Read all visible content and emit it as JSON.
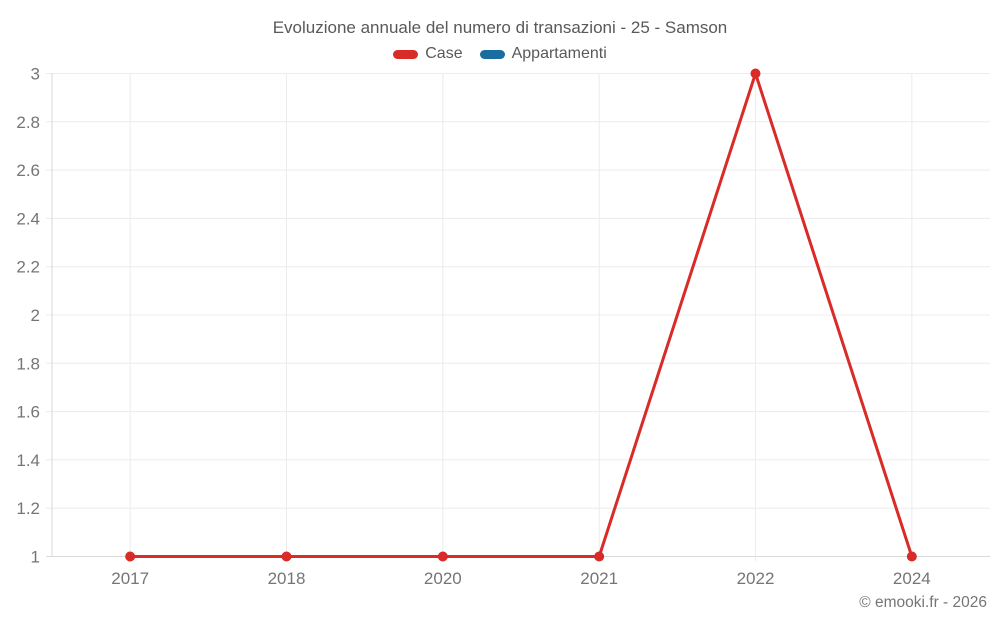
{
  "title": "Evoluzione annuale del numero di transazioni - 25 - Samson",
  "legend": [
    {
      "label": "Case",
      "color": "#d92b27"
    },
    {
      "label": "Appartamenti",
      "color": "#1b6d9f"
    }
  ],
  "footer": {
    "copyright": "© emooki.fr - 2026"
  },
  "colors": {
    "grid": "#ececec",
    "axis": "#d9d9d9",
    "tick_text": "#757575",
    "title_text": "#595959"
  },
  "chart_data": {
    "type": "line",
    "title": "Evoluzione annuale del numero di transazioni - 25 - Samson",
    "categories": [
      "2017",
      "2018",
      "2020",
      "2021",
      "2022",
      "2024"
    ],
    "series": [
      {
        "name": "Case",
        "color": "#d92b27",
        "values": [
          1,
          1,
          1,
          1,
          3,
          1
        ]
      },
      {
        "name": "Appartamenti",
        "color": "#1b6d9f",
        "values": [
          null,
          null,
          null,
          null,
          null,
          null
        ]
      }
    ],
    "xlabel": "",
    "ylabel": "",
    "ylim": [
      1,
      3
    ],
    "y_ticks": [
      "3",
      "2.8",
      "2.6",
      "2.4",
      "2.2",
      "2",
      "1.8",
      "1.6",
      "1.4",
      "1.2",
      "1"
    ],
    "grid": true,
    "legend_position": "top"
  }
}
